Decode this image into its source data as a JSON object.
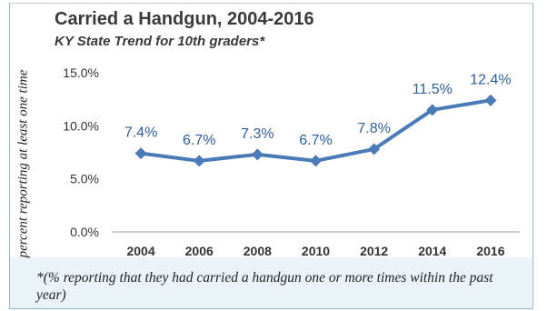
{
  "chart_data": {
    "type": "line",
    "title": "Carried a Handgun, 2004-2016",
    "subtitle": "KY State Trend for 10th graders*",
    "xlabel": "",
    "ylabel": "percent reporting at least one time",
    "categories": [
      "2004",
      "2006",
      "2008",
      "2010",
      "2012",
      "2014",
      "2016"
    ],
    "series": [
      {
        "values": [
          7.4,
          6.7,
          7.3,
          6.7,
          7.8,
          11.5,
          12.4
        ],
        "data_labels": [
          "7.4%",
          "6.7%",
          "7.3%",
          "6.7%",
          "7.8%",
          "11.5%",
          "12.4%"
        ],
        "color": "#4a7ab8"
      }
    ],
    "ylim": [
      0,
      15
    ],
    "yticks": [
      0,
      5,
      10,
      15
    ],
    "ytick_labels": [
      "0.0%",
      "5.0%",
      "10.0%",
      "15.0%"
    ],
    "grid": false,
    "marker": "diamond"
  },
  "footnote": "*(% reporting that they had carried a handgun one or more times within the past year)",
  "colors": {
    "line": "#4a7ab8",
    "axis": "#9a9a9a",
    "border": "#8fb8c8",
    "footnote_band": "#eaf4f8"
  }
}
